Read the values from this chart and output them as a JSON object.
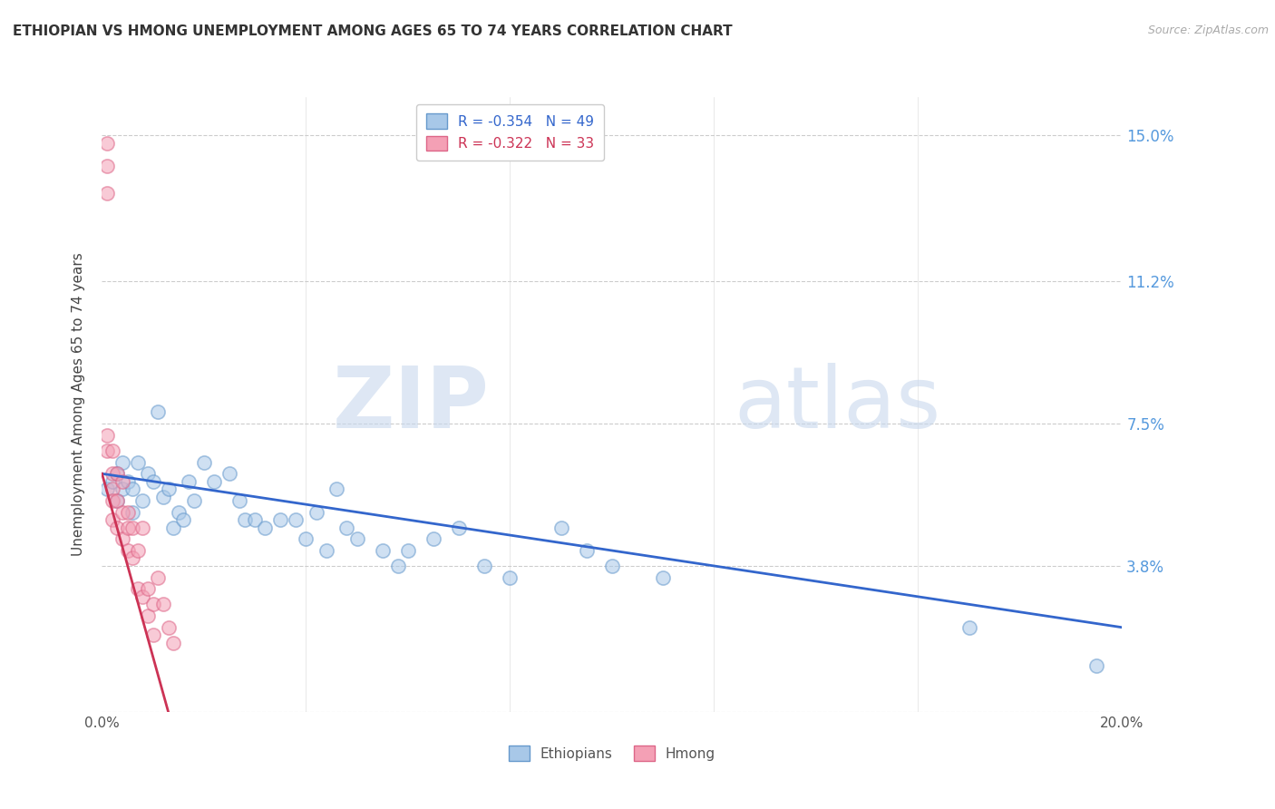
{
  "title": "ETHIOPIAN VS HMONG UNEMPLOYMENT AMONG AGES 65 TO 74 YEARS CORRELATION CHART",
  "source": "Source: ZipAtlas.com",
  "ylabel": "Unemployment Among Ages 65 to 74 years",
  "xlim": [
    0,
    0.2
  ],
  "ylim": [
    0,
    0.16
  ],
  "xtick_positions": [
    0.0,
    0.2
  ],
  "xticklabels": [
    "0.0%",
    "20.0%"
  ],
  "right_yticks": [
    0.0,
    0.038,
    0.075,
    0.112,
    0.15
  ],
  "right_yticklabels": [
    "",
    "3.8%",
    "7.5%",
    "11.2%",
    "15.0%"
  ],
  "grid_color": "#cccccc",
  "background_color": "#ffffff",
  "ethiopian_color": "#a8c8e8",
  "hmong_color": "#f4a0b5",
  "trend_ethiopian_color": "#3366cc",
  "trend_hmong_color": "#cc3355",
  "legend_R_ethiopian": "R = -0.354",
  "legend_N_ethiopian": "N = 49",
  "legend_R_hmong": "R = -0.322",
  "legend_N_hmong": "N = 33",
  "ethiopian_x": [
    0.001,
    0.002,
    0.003,
    0.003,
    0.004,
    0.004,
    0.005,
    0.006,
    0.006,
    0.007,
    0.008,
    0.009,
    0.01,
    0.011,
    0.012,
    0.013,
    0.014,
    0.015,
    0.016,
    0.017,
    0.018,
    0.02,
    0.022,
    0.025,
    0.027,
    0.028,
    0.03,
    0.032,
    0.035,
    0.038,
    0.04,
    0.042,
    0.044,
    0.046,
    0.048,
    0.05,
    0.055,
    0.058,
    0.06,
    0.065,
    0.07,
    0.075,
    0.08,
    0.09,
    0.095,
    0.1,
    0.11,
    0.17,
    0.195
  ],
  "ethiopian_y": [
    0.058,
    0.06,
    0.062,
    0.055,
    0.065,
    0.058,
    0.06,
    0.052,
    0.058,
    0.065,
    0.055,
    0.062,
    0.06,
    0.078,
    0.056,
    0.058,
    0.048,
    0.052,
    0.05,
    0.06,
    0.055,
    0.065,
    0.06,
    0.062,
    0.055,
    0.05,
    0.05,
    0.048,
    0.05,
    0.05,
    0.045,
    0.052,
    0.042,
    0.058,
    0.048,
    0.045,
    0.042,
    0.038,
    0.042,
    0.045,
    0.048,
    0.038,
    0.035,
    0.048,
    0.042,
    0.038,
    0.035,
    0.022,
    0.012
  ],
  "hmong_x": [
    0.001,
    0.001,
    0.001,
    0.001,
    0.001,
    0.002,
    0.002,
    0.002,
    0.002,
    0.002,
    0.003,
    0.003,
    0.003,
    0.004,
    0.004,
    0.004,
    0.005,
    0.005,
    0.005,
    0.006,
    0.006,
    0.007,
    0.007,
    0.008,
    0.008,
    0.009,
    0.009,
    0.01,
    0.01,
    0.011,
    0.012,
    0.013,
    0.014
  ],
  "hmong_y": [
    0.148,
    0.142,
    0.135,
    0.072,
    0.068,
    0.068,
    0.062,
    0.058,
    0.055,
    0.05,
    0.062,
    0.055,
    0.048,
    0.06,
    0.052,
    0.045,
    0.052,
    0.048,
    0.042,
    0.048,
    0.04,
    0.042,
    0.032,
    0.048,
    0.03,
    0.032,
    0.025,
    0.028,
    0.02,
    0.035,
    0.028,
    0.022,
    0.018
  ],
  "trend_eth_x0": 0.0,
  "trend_eth_y0": 0.062,
  "trend_eth_x1": 0.2,
  "trend_eth_y1": 0.022,
  "trend_hmong_x0": 0.0,
  "trend_hmong_y0": 0.062,
  "trend_hmong_x1": 0.013,
  "trend_hmong_y1": 0.0,
  "watermark_zip": "ZIP",
  "watermark_atlas": "atlas",
  "marker_size": 120,
  "marker_alpha": 0.55,
  "marker_linewidth": 1.2,
  "marker_edgecolor_ethiopian": "#6699cc",
  "marker_edgecolor_hmong": "#dd6688"
}
